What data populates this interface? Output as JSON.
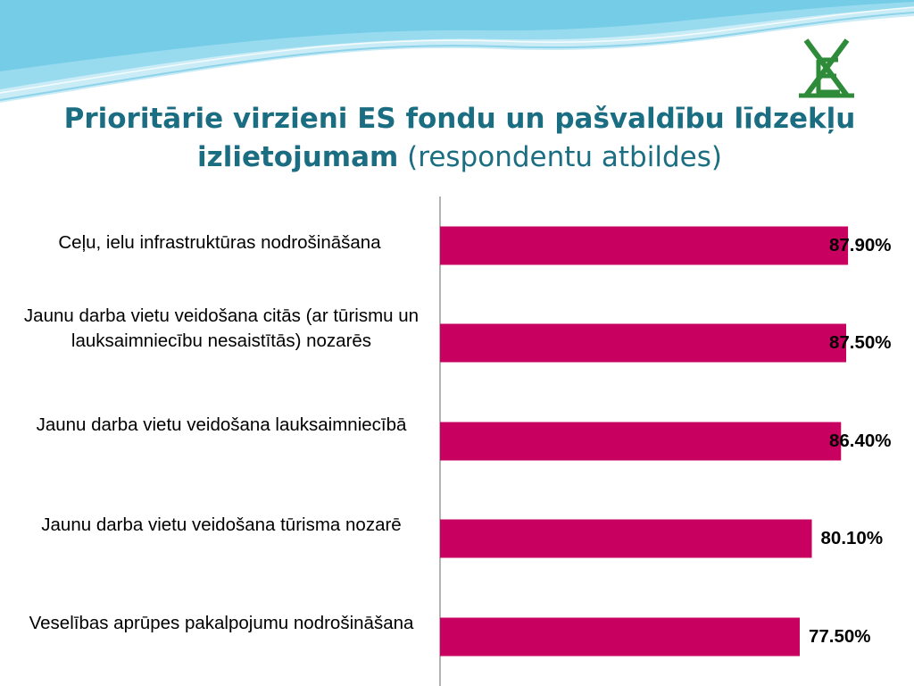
{
  "title": {
    "bold": "Prioritārie virzieni ES fondu un pašvaldību līdzekļu izlietojumam",
    "normal": "(respondentu atbildes)"
  },
  "colors": {
    "bar": "#c8005f",
    "title": "#1b6e82",
    "logo": "#2e8b3a",
    "wave": "#9fdcef"
  },
  "chart_data": {
    "type": "bar",
    "orientation": "horizontal",
    "categories": [
      "Ceļu, ielu infrastruktūras nodrošināšana",
      "Jaunu darba vietu veidošana citās (ar tūrismu un lauksaimniecību nesaistītās) nozarēs",
      "Jaunu darba vietu veidošana lauksaimniecībā",
      "Jaunu darba vietu veidošana tūrisma nozarē",
      "Veselības aprūpes pakalpojumu nodrošināšana"
    ],
    "values": [
      87.9,
      87.5,
      86.4,
      80.1,
      77.5
    ],
    "value_labels": [
      "87.90%",
      "87.50%",
      "86.40%",
      "80.10%",
      "77.50%"
    ],
    "unit": "%",
    "grid": false,
    "legend": "none"
  }
}
